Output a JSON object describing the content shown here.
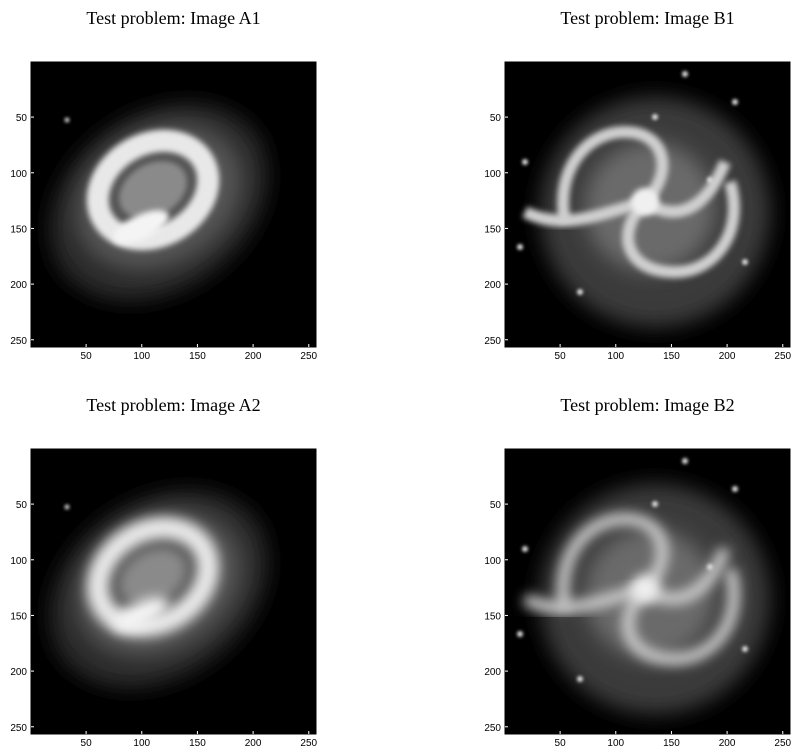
{
  "chart_data": [
    {
      "type": "image",
      "title": "Test problem: Image A1",
      "xlim": [
        0.5,
        256.5
      ],
      "ylim": [
        0.5,
        256.5
      ],
      "y_inverted": true,
      "xticks": [
        50,
        100,
        150,
        200,
        250
      ],
      "yticks": [
        50,
        100,
        150,
        200,
        250
      ]
    },
    {
      "type": "image",
      "title": "Test problem: Image B1",
      "xlim": [
        0.5,
        256.5
      ],
      "ylim": [
        0.5,
        256.5
      ],
      "y_inverted": true,
      "xticks": [
        50,
        100,
        150,
        200,
        250
      ],
      "yticks": [
        50,
        100,
        150,
        200,
        250
      ]
    },
    {
      "type": "image",
      "title": "Test problem: Image A2",
      "xlim": [
        0.5,
        256.5
      ],
      "ylim": [
        0.5,
        256.5
      ],
      "y_inverted": true,
      "xticks": [
        50,
        100,
        150,
        200,
        250
      ],
      "yticks": [
        50,
        100,
        150,
        200,
        250
      ]
    },
    {
      "type": "image",
      "title": "Test problem: Image B2",
      "xlim": [
        0.5,
        256.5
      ],
      "ylim": [
        0.5,
        256.5
      ],
      "y_inverted": true,
      "xticks": [
        50,
        100,
        150,
        200,
        250
      ],
      "yticks": [
        50,
        100,
        150,
        200,
        250
      ]
    }
  ]
}
